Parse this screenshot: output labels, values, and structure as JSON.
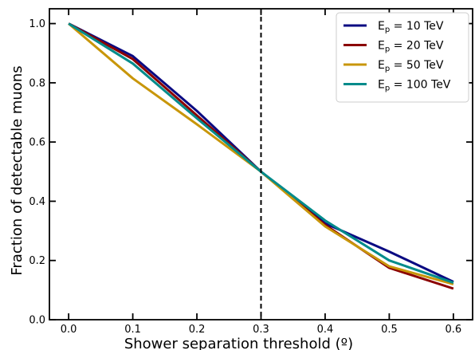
{
  "chart_data": {
    "type": "line",
    "xlabel": "Shower separation threshold (º)",
    "ylabel": "Fraction of detectable muons",
    "xlim": [
      -0.03,
      0.63
    ],
    "ylim": [
      0.0,
      1.05
    ],
    "x_ticks": [
      0.0,
      0.1,
      0.2,
      0.3,
      0.4,
      0.5,
      0.6
    ],
    "y_ticks": [
      0.0,
      0.2,
      0.4,
      0.6,
      0.8,
      1.0
    ],
    "x_tick_labels": [
      "0.0",
      "0.1",
      "0.2",
      "0.3",
      "0.4",
      "0.5",
      "0.6"
    ],
    "y_tick_labels": [
      "0.0",
      "0.2",
      "0.4",
      "0.6",
      "0.8",
      "1.0"
    ],
    "x": [
      0.0,
      0.1,
      0.2,
      0.3,
      0.4,
      0.5,
      0.6
    ],
    "series": [
      {
        "name_prefix": "E",
        "name_sub": "p",
        "name_suffix": " = 10 TeV",
        "color": "#0a0a82",
        "values": [
          1.0,
          0.89,
          0.705,
          0.5,
          0.325,
          0.23,
          0.128
        ]
      },
      {
        "name_prefix": "E",
        "name_sub": "p",
        "name_suffix": " = 20 TeV",
        "color": "#8b0000",
        "values": [
          1.0,
          0.88,
          0.69,
          0.5,
          0.32,
          0.175,
          0.105
        ]
      },
      {
        "name_prefix": "E",
        "name_sub": "p",
        "name_suffix": " = 50 TeV",
        "color": "#c8960a",
        "values": [
          1.0,
          0.815,
          0.66,
          0.5,
          0.315,
          0.18,
          0.12
        ]
      },
      {
        "name_prefix": "E",
        "name_sub": "p",
        "name_suffix": " = 100 TeV",
        "color": "#008b8b",
        "values": [
          1.0,
          0.865,
          0.68,
          0.5,
          0.335,
          0.2,
          0.125
        ]
      }
    ],
    "vline": {
      "x": 0.3,
      "style": "dashed",
      "color": "#000000"
    },
    "legend_position": "top-right",
    "grid": false
  }
}
